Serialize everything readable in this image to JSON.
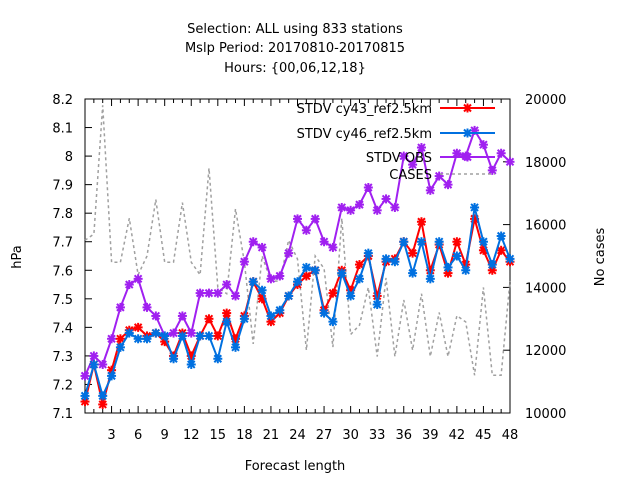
{
  "chart_data": {
    "type": "line",
    "title_lines": [
      "Selection: ALL using   833 stations",
      "Mslp   Period: 20170810-20170815",
      "Hours: {00,06,12,18}"
    ],
    "xlabel": "Forecast length",
    "ylabel": "hPa",
    "y2label": "No cases",
    "xlim": [
      0,
      48
    ],
    "ylim": [
      7.1,
      8.2
    ],
    "y2lim": [
      10000,
      20000
    ],
    "xticks": [
      3,
      6,
      9,
      12,
      15,
      18,
      21,
      24,
      27,
      30,
      33,
      36,
      39,
      42,
      45,
      48
    ],
    "yticks": [
      7.1,
      7.2,
      7.3,
      7.4,
      7.5,
      7.6,
      7.7,
      7.8,
      7.9,
      8.0,
      8.1,
      8.2
    ],
    "ytick_labels": [
      "7.1",
      "7.2",
      "7.3",
      "7.4",
      "7.5",
      "7.6",
      "7.7",
      "7.8",
      "7.9",
      "8",
      "8.1",
      "8.2"
    ],
    "y2ticks": [
      10000,
      12000,
      14000,
      16000,
      18000,
      20000
    ],
    "grid": false,
    "legend_position": "top-right",
    "x": [
      0,
      1,
      2,
      3,
      4,
      5,
      6,
      7,
      8,
      9,
      10,
      11,
      12,
      13,
      14,
      15,
      16,
      17,
      18,
      19,
      20,
      21,
      22,
      23,
      24,
      25,
      26,
      27,
      28,
      29,
      30,
      31,
      32,
      33,
      34,
      35,
      36,
      37,
      38,
      39,
      40,
      41,
      42,
      43,
      44,
      45,
      46,
      47,
      48
    ],
    "series": [
      {
        "name": "STDV cy43_ref2.5km",
        "color": "#ff0000",
        "axis": "y1",
        "values": [
          7.14,
          7.27,
          7.13,
          7.25,
          7.36,
          7.39,
          7.4,
          7.37,
          7.38,
          7.35,
          7.3,
          7.38,
          7.3,
          7.37,
          7.43,
          7.37,
          7.45,
          7.36,
          7.44,
          7.56,
          7.5,
          7.42,
          7.45,
          7.51,
          7.55,
          7.58,
          7.6,
          7.46,
          7.52,
          7.6,
          7.53,
          7.62,
          7.65,
          7.51,
          7.63,
          7.64,
          7.7,
          7.66,
          7.77,
          7.6,
          7.69,
          7.59,
          7.7,
          7.62,
          7.78,
          7.67,
          7.6,
          7.67,
          7.63
        ]
      },
      {
        "name": "STDV cy46_ref2.5km",
        "color": "#0070e0",
        "axis": "y1",
        "values": [
          7.16,
          7.27,
          7.16,
          7.23,
          7.33,
          7.38,
          7.36,
          7.36,
          7.38,
          7.37,
          7.29,
          7.37,
          7.27,
          7.37,
          7.37,
          7.29,
          7.42,
          7.33,
          7.43,
          7.56,
          7.53,
          7.44,
          7.46,
          7.51,
          7.56,
          7.61,
          7.6,
          7.45,
          7.42,
          7.59,
          7.51,
          7.57,
          7.66,
          7.48,
          7.64,
          7.63,
          7.7,
          7.59,
          7.7,
          7.57,
          7.7,
          7.61,
          7.65,
          7.6,
          7.82,
          7.7,
          7.62,
          7.72,
          7.64
        ]
      },
      {
        "name": "STDV OBS",
        "color": "#a020f0",
        "axis": "y1",
        "values": [
          7.23,
          7.3,
          7.27,
          7.36,
          7.47,
          7.55,
          7.57,
          7.47,
          7.44,
          7.37,
          7.38,
          7.44,
          7.38,
          7.52,
          7.52,
          7.52,
          7.55,
          7.51,
          7.63,
          7.7,
          7.68,
          7.57,
          7.58,
          7.66,
          7.78,
          7.74,
          7.78,
          7.7,
          7.68,
          7.82,
          7.81,
          7.83,
          7.89,
          7.81,
          7.85,
          7.82,
          8.0,
          7.97,
          8.03,
          7.88,
          7.93,
          7.9,
          8.01,
          8.0,
          8.09,
          8.04,
          7.95,
          8.01,
          7.98
        ]
      },
      {
        "name": "CASES",
        "color": "#a0a0a0",
        "axis": "y2",
        "values": [
          15500,
          15700,
          19800,
          14800,
          14800,
          16200,
          14400,
          15000,
          16800,
          14800,
          14800,
          16700,
          14800,
          14400,
          17800,
          14000,
          13800,
          16500,
          14800,
          12200,
          15000,
          14200,
          14200,
          15500,
          14900,
          12000,
          15000,
          14600,
          12100,
          16200,
          12500,
          12800,
          14000,
          11800,
          14300,
          11800,
          13600,
          12000,
          13800,
          11800,
          13200,
          11800,
          13100,
          12900,
          11200,
          14000,
          11200,
          11200,
          14200
        ]
      }
    ]
  }
}
